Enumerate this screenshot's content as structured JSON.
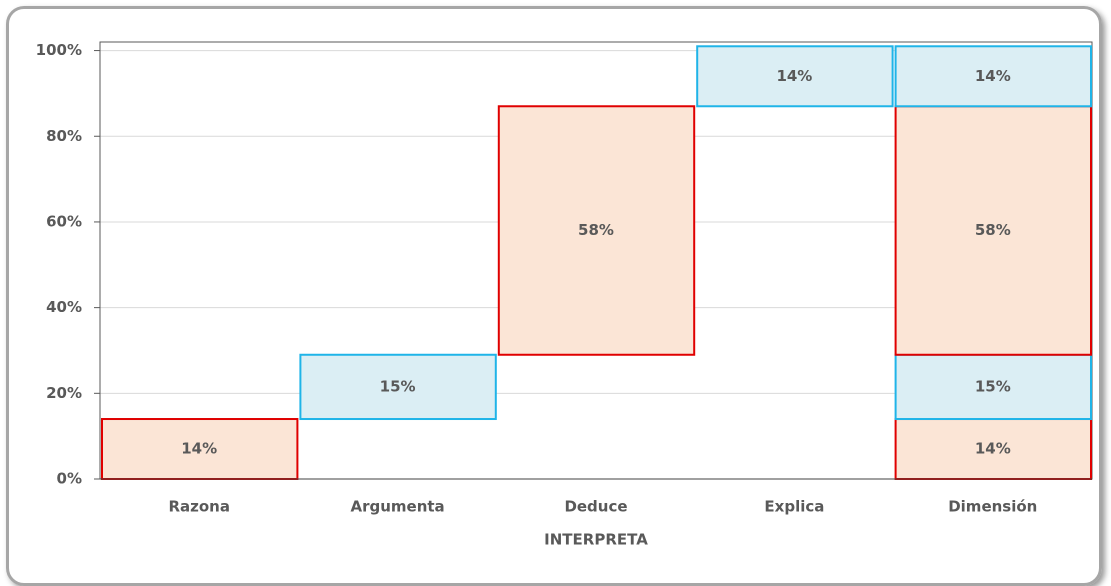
{
  "chart_data": {
    "type": "waterfall",
    "categories": [
      "Razona",
      "Argumenta",
      "Deduce",
      "Explica"
    ],
    "total_category": "Dimensión",
    "values": [
      14,
      15,
      58,
      14
    ],
    "value_labels": [
      "14%",
      "15%",
      "58%",
      "14%"
    ],
    "colors": [
      "#fbe5d6",
      "#dbeef4",
      "#fbe5d6",
      "#dbeef4"
    ],
    "edgecolors": [
      "#e00000",
      "#1fb4e8",
      "#e00000",
      "#1fb4e8"
    ],
    "xlabel": "INTERPRETA",
    "ylim": [
      0,
      102
    ],
    "yticks": [
      {
        "value": 0,
        "label": "0%"
      },
      {
        "value": 20,
        "label": "20%"
      },
      {
        "value": 40,
        "label": "40%"
      },
      {
        "value": 60,
        "label": "60%"
      },
      {
        "value": 80,
        "label": "80%"
      },
      {
        "value": 100,
        "label": "100%"
      }
    ],
    "grid": true
  }
}
